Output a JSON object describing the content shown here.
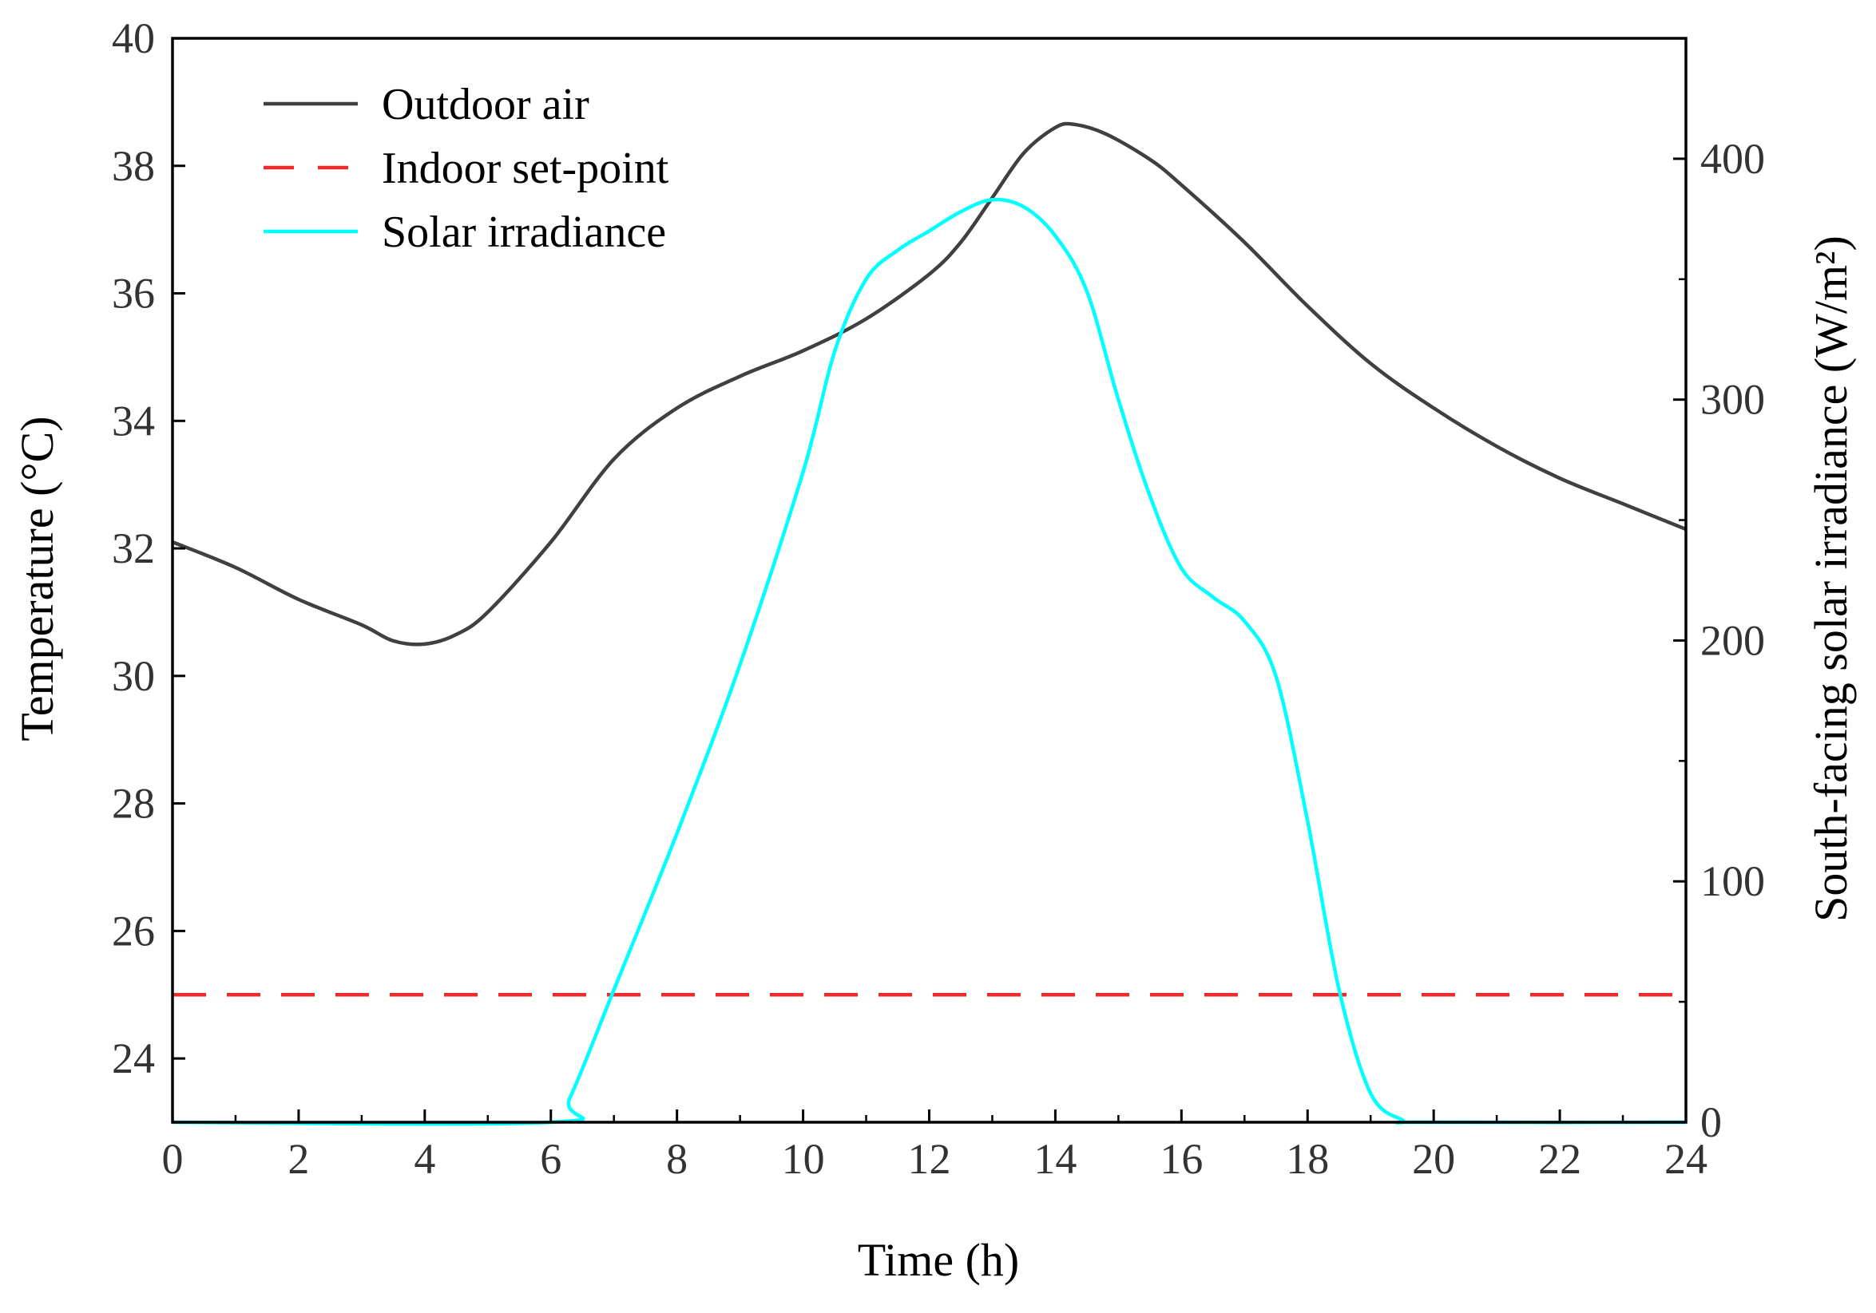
{
  "chart_data": {
    "type": "line",
    "xlabel": "Time (h)",
    "ylabel_left": "Temperature (°C)",
    "ylabel_right": "South-facing solar irradiance (W/m²)",
    "xlim": [
      0,
      24
    ],
    "ylim_left": [
      23,
      40
    ],
    "ylim_right": [
      0,
      450
    ],
    "x_ticks": [
      "0",
      "2",
      "4",
      "6",
      "8",
      "10",
      "12",
      "14",
      "16",
      "18",
      "20",
      "22",
      "24"
    ],
    "y_left_ticks": [
      "24",
      "26",
      "28",
      "30",
      "32",
      "34",
      "36",
      "38",
      "40"
    ],
    "y_right_ticks": [
      "0",
      "100",
      "200",
      "300",
      "400"
    ],
    "grid": false,
    "legend_position": "top-left",
    "series": [
      {
        "name": "Outdoor air",
        "axis": "left",
        "color": "#404040",
        "style": "solid",
        "x": [
          0,
          1,
          2,
          3,
          3.5,
          4,
          4.5,
          5,
          6,
          7,
          8,
          9,
          10,
          11,
          12,
          12.5,
          13,
          13.5,
          14,
          14.3,
          14.8,
          15.5,
          16,
          17,
          18,
          19,
          20,
          21,
          22,
          23,
          24
        ],
        "y": [
          32.1,
          31.7,
          31.2,
          30.8,
          30.55,
          30.5,
          30.65,
          31.0,
          32.1,
          33.4,
          34.2,
          34.7,
          35.1,
          35.6,
          36.3,
          36.8,
          37.5,
          38.2,
          38.6,
          38.65,
          38.5,
          38.1,
          37.7,
          36.8,
          35.8,
          34.9,
          34.2,
          33.6,
          33.1,
          32.7,
          32.3
        ]
      },
      {
        "name": "Indoor set-point",
        "axis": "left",
        "color": "#ee2b2b",
        "style": "dashed",
        "x": [
          0,
          24
        ],
        "y": [
          25,
          25
        ]
      },
      {
        "name": "Solar irradiance",
        "axis": "right",
        "color": "#00ffff",
        "style": "solid",
        "x": [
          0,
          6,
          6.3,
          7,
          8,
          9,
          10,
          10.5,
          11,
          11.5,
          12,
          12.5,
          13,
          13.5,
          14,
          14.5,
          15,
          15.5,
          16,
          16.5,
          17,
          17.5,
          18,
          18.5,
          19,
          19.5,
          19.8,
          24
        ],
        "y": [
          0,
          0,
          10,
          55,
          120,
          190,
          270,
          320,
          350,
          362,
          370,
          378,
          383,
          380,
          368,
          345,
          300,
          260,
          230,
          218,
          208,
          185,
          125,
          55,
          12,
          1,
          0,
          0
        ]
      }
    ]
  }
}
